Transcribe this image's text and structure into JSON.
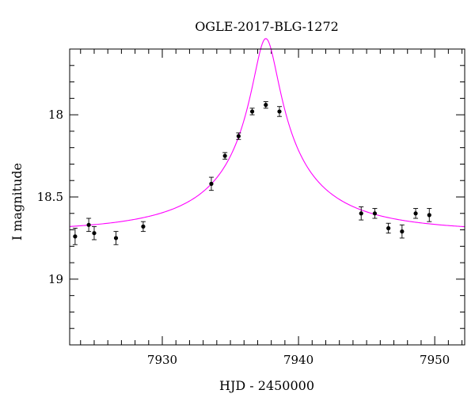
{
  "chart_data": {
    "type": "scatter",
    "title": "OGLE-2017-BLG-1272",
    "xlabel": "HJD - 2450000",
    "ylabel": "I magnitude",
    "xlim": [
      7923.2,
      7952.2
    ],
    "ylim": [
      19.4,
      17.6
    ],
    "y_inverted": true,
    "x_ticks": [
      7930,
      7940,
      7950
    ],
    "x_tick_labels": [
      "7930",
      "7940",
      "7950"
    ],
    "y_ticks": [
      18,
      18.5,
      19
    ],
    "y_tick_labels": [
      "18",
      "18.5",
      "19"
    ],
    "x_minor_step": 1,
    "y_minor_step": 0.1,
    "grid": false,
    "series": [
      {
        "kind": "points_with_errorbars",
        "color": "#000000",
        "points": [
          {
            "x": 7923.6,
            "y": 18.74,
            "err": 0.05
          },
          {
            "x": 7924.6,
            "y": 18.67,
            "err": 0.04
          },
          {
            "x": 7925.0,
            "y": 18.72,
            "err": 0.04
          },
          {
            "x": 7926.6,
            "y": 18.75,
            "err": 0.04
          },
          {
            "x": 7928.6,
            "y": 18.68,
            "err": 0.03
          },
          {
            "x": 7933.6,
            "y": 18.42,
            "err": 0.04
          },
          {
            "x": 7934.6,
            "y": 18.25,
            "err": 0.02
          },
          {
            "x": 7935.6,
            "y": 18.13,
            "err": 0.02
          },
          {
            "x": 7936.6,
            "y": 17.98,
            "err": 0.02
          },
          {
            "x": 7937.6,
            "y": 17.94,
            "err": 0.02
          },
          {
            "x": 7938.6,
            "y": 17.98,
            "err": 0.03
          },
          {
            "x": 7944.6,
            "y": 18.6,
            "err": 0.04
          },
          {
            "x": 7945.6,
            "y": 18.6,
            "err": 0.03
          },
          {
            "x": 7946.6,
            "y": 18.69,
            "err": 0.03
          },
          {
            "x": 7947.6,
            "y": 18.71,
            "err": 0.04
          },
          {
            "x": 7948.6,
            "y": 18.6,
            "err": 0.03
          },
          {
            "x": 7949.6,
            "y": 18.61,
            "err": 0.04
          }
        ]
      },
      {
        "kind": "model_curve",
        "color": "#ff00ff",
        "model": {
          "t0": 7937.6,
          "tE": 10.0,
          "u0": 0.09,
          "baseline_mag": 18.71,
          "fs": 0.192
        }
      }
    ]
  }
}
